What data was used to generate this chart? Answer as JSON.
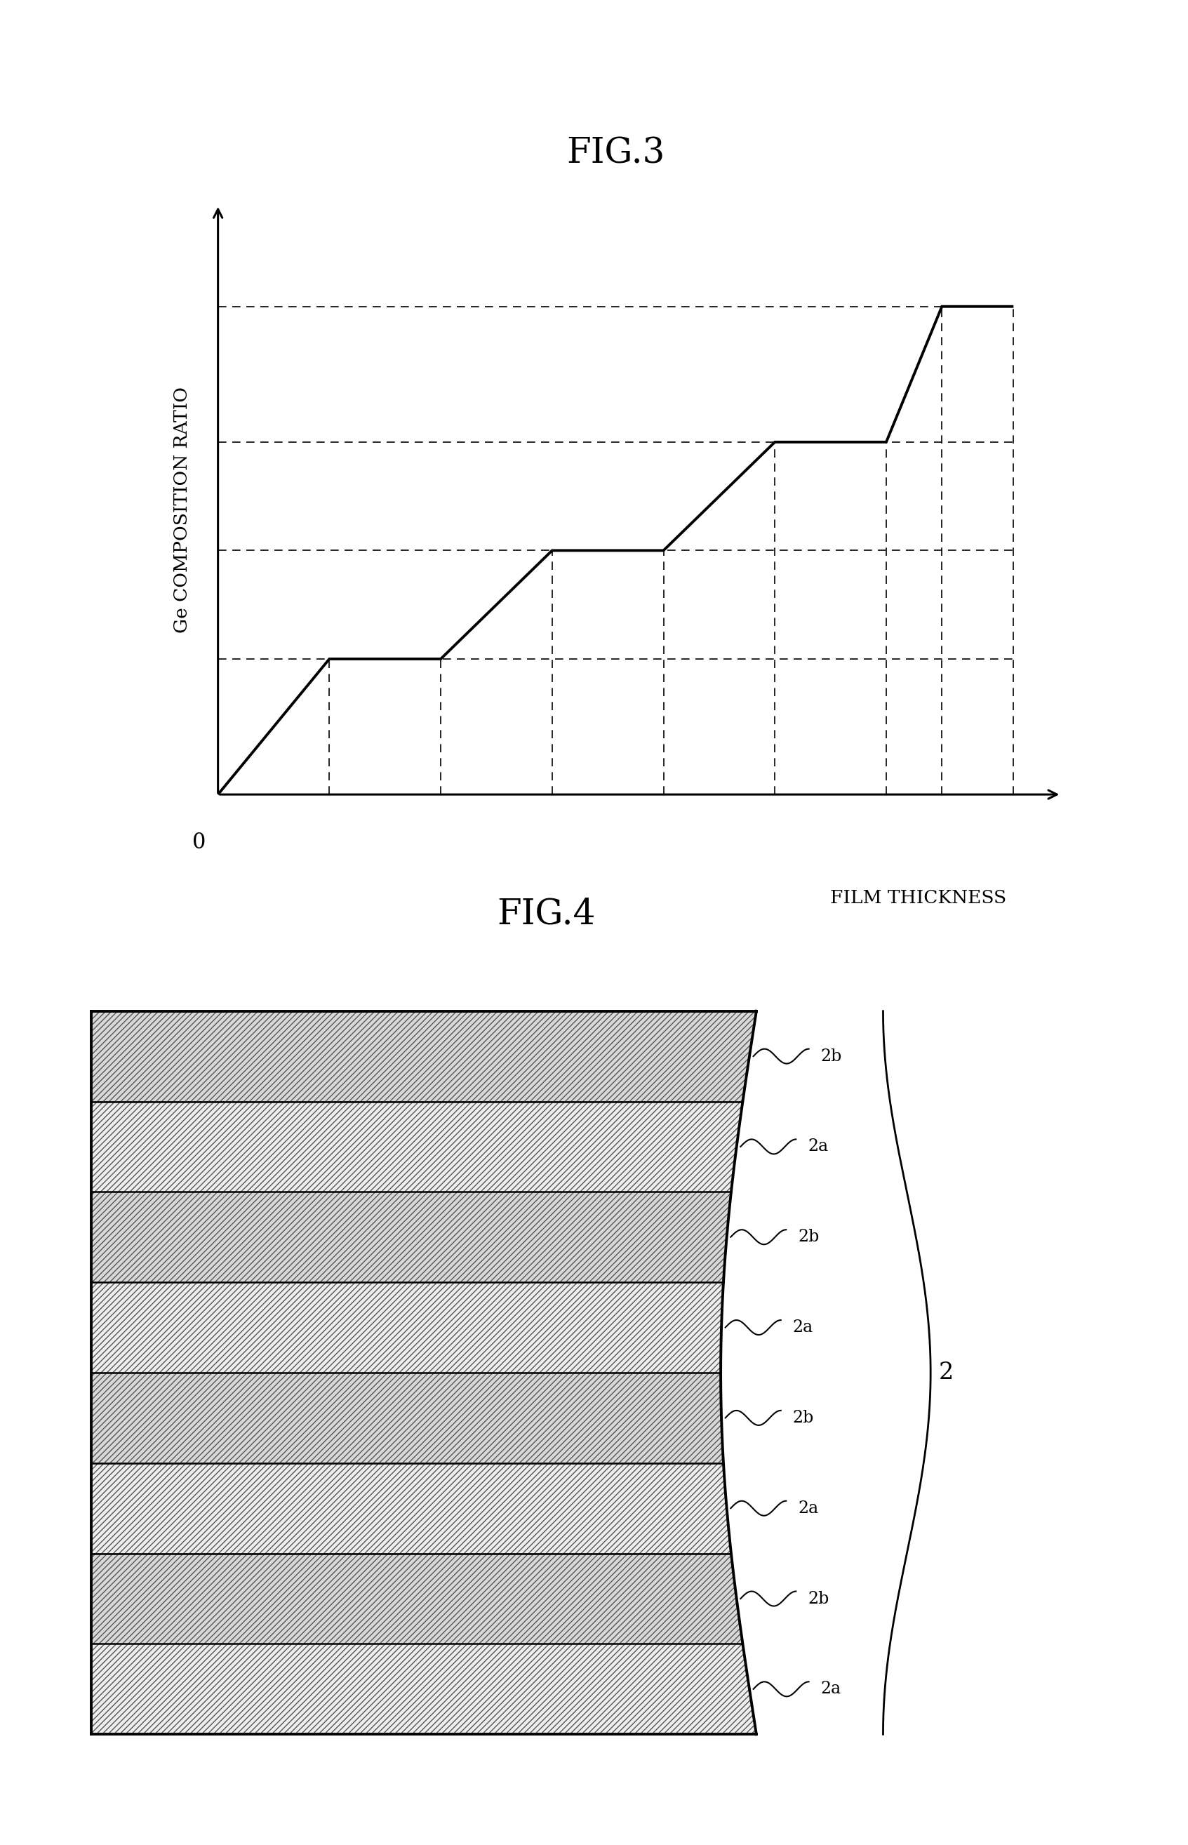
{
  "fig3_title": "FIG.3",
  "fig4_title": "FIG.4",
  "fig3_ylabel": "Ge COMPOSITION RATIO",
  "fig3_xlabel": "FILM THICKNESS",
  "background_color": "#ffffff",
  "line_color": "#000000",
  "dashed_color": "#000000",
  "layer_labels": [
    "2b",
    "2a",
    "2b",
    "2a",
    "2b",
    "2a",
    "2b",
    "2a"
  ],
  "group_label": "2",
  "n_layers": 8,
  "step_levels": [
    0.2,
    0.36,
    0.52,
    0.72
  ],
  "step_x": [
    0.0,
    1.4,
    2.8,
    4.2,
    5.6,
    7.0,
    8.4,
    9.1,
    10.0
  ]
}
